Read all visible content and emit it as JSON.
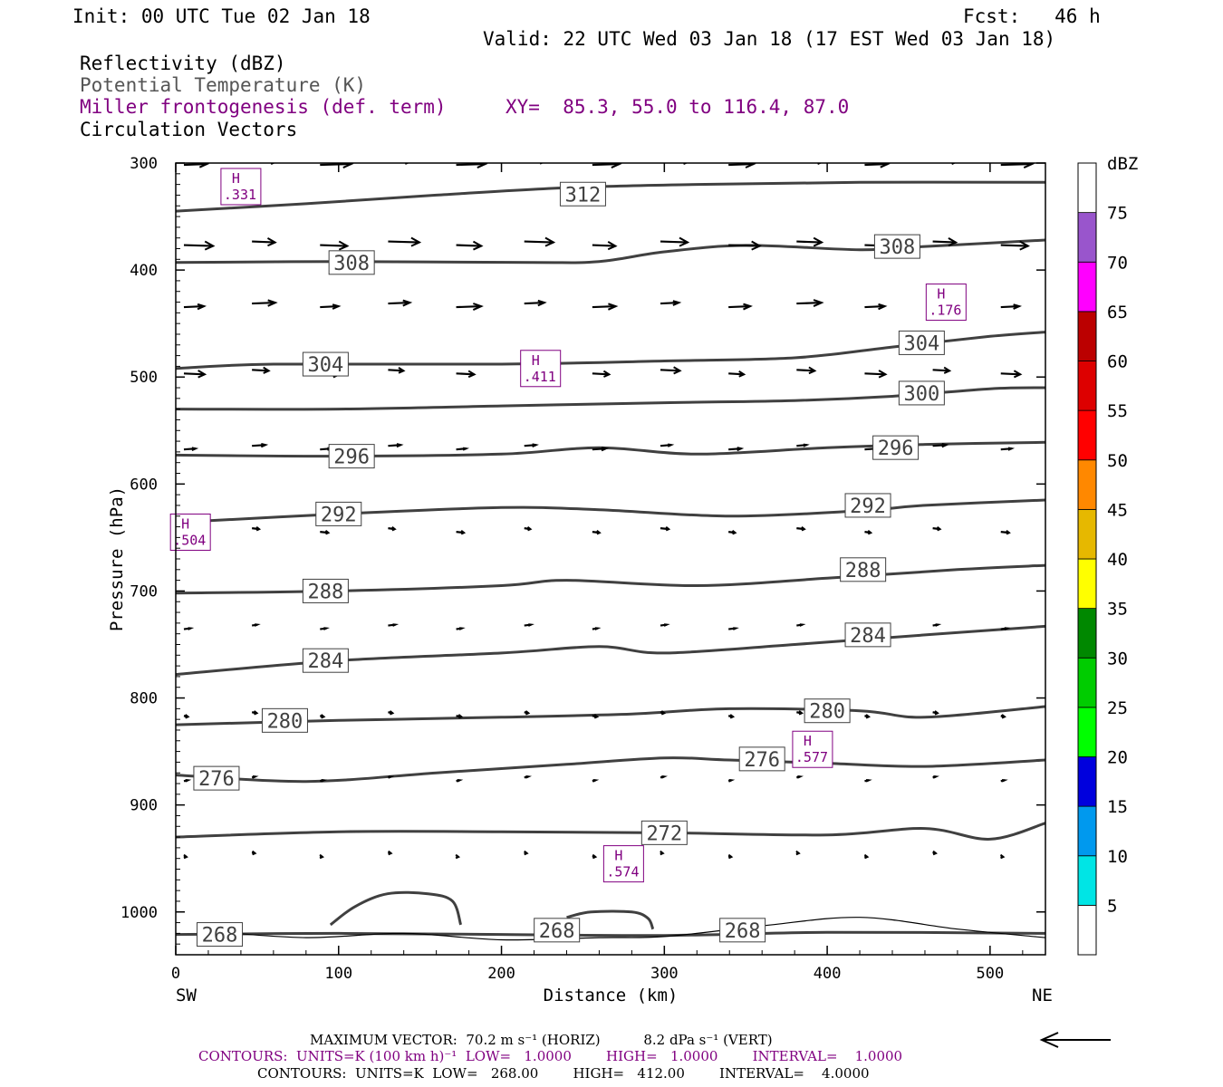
{
  "header": {
    "init": "Init: 00 UTC Tue 02 Jan 18",
    "fcst": "Fcst:   46 h",
    "valid": "Valid: 22 UTC Wed 03 Jan 18 (17 EST Wed 03 Jan 18)",
    "fields": [
      "Reflectivity (dBZ)",
      "Potential Temperature (K)",
      "Miller frontogenesis (def. term)",
      "Circulation Vectors"
    ],
    "xy": "XY=  85.3, 55.0 to 116.4, 87.0"
  },
  "footer": {
    "max_vector": "MAXIMUM VECTOR:  70.2 m s⁻¹ (HORIZ)          8.2 dPa s⁻¹ (VERT)",
    "contours_purple": "CONTOURS:  UNITS=K (100 km h)⁻¹  LOW=   1.0000        HIGH=   1.0000        INTERVAL=    1.0000",
    "contours_black": "CONTOURS:  UNITS=K  LOW=   268.00        HIGH=   412.00        INTERVAL=    4.0000"
  },
  "chart_data": {
    "type": "cross-section",
    "xlabel": "Distance (km)",
    "ylabel": "Pressure (hPa)",
    "xlim": [
      0,
      534
    ],
    "ylim": [
      1040,
      300
    ],
    "x_ticks": [
      0,
      100,
      200,
      300,
      400,
      500
    ],
    "y_ticks": [
      300,
      400,
      500,
      600,
      700,
      800,
      900,
      1000
    ],
    "x_end_labels": [
      "SW",
      "NE"
    ],
    "colorbar": {
      "label": "dBZ",
      "levels": [
        5,
        10,
        15,
        20,
        25,
        30,
        35,
        40,
        45,
        50,
        55,
        60,
        65,
        70,
        75
      ],
      "colors": [
        "#ffffff",
        "#00e5e5",
        "#0099ee",
        "#0000dd",
        "#00ff00",
        "#00cc00",
        "#008800",
        "#ffff00",
        "#e6b800",
        "#ff8800",
        "#ff0000",
        "#dd0000",
        "#bb0000",
        "#ff00ff",
        "#9955cc",
        "#ffffff"
      ]
    },
    "theta_contours": [
      {
        "value": 312,
        "points": [
          [
            0,
            345
          ],
          [
            80,
            338
          ],
          [
            160,
            330
          ],
          [
            240,
            323
          ],
          [
            320,
            320
          ],
          [
            420,
            318
          ],
          [
            534,
            318
          ]
        ],
        "labels": [
          [
            250,
            329
          ]
        ]
      },
      {
        "value": 308,
        "points": [
          [
            0,
            393
          ],
          [
            100,
            392
          ],
          [
            220,
            393
          ],
          [
            260,
            392
          ],
          [
            300,
            383
          ],
          [
            350,
            377
          ],
          [
            420,
            381
          ],
          [
            460,
            378
          ],
          [
            534,
            372
          ]
        ],
        "labels": [
          [
            108,
            393
          ],
          [
            443,
            378
          ]
        ]
      },
      {
        "value": 304,
        "points": [
          [
            0,
            492
          ],
          [
            60,
            488
          ],
          [
            200,
            488
          ],
          [
            300,
            485
          ],
          [
            380,
            482
          ],
          [
            440,
            472
          ],
          [
            500,
            462
          ],
          [
            534,
            458
          ]
        ],
        "labels": [
          [
            92,
            488
          ],
          [
            458,
            468
          ]
        ]
      },
      {
        "value": 300,
        "points": [
          [
            0,
            530
          ],
          [
            100,
            530
          ],
          [
            200,
            527
          ],
          [
            300,
            524
          ],
          [
            380,
            522
          ],
          [
            440,
            518
          ],
          [
            500,
            511
          ],
          [
            534,
            510
          ]
        ],
        "labels": [
          [
            458,
            515
          ]
        ]
      },
      {
        "value": 296,
        "points": [
          [
            0,
            573
          ],
          [
            100,
            574
          ],
          [
            200,
            572
          ],
          [
            260,
            566
          ],
          [
            320,
            572
          ],
          [
            400,
            566
          ],
          [
            460,
            563
          ],
          [
            534,
            561
          ]
        ],
        "labels": [
          [
            108,
            574
          ],
          [
            442,
            566
          ]
        ]
      },
      {
        "value": 292,
        "points": [
          [
            0,
            636
          ],
          [
            100,
            628
          ],
          [
            200,
            622
          ],
          [
            260,
            624
          ],
          [
            340,
            630
          ],
          [
            420,
            625
          ],
          [
            460,
            620
          ],
          [
            534,
            615
          ]
        ],
        "labels": [
          [
            100,
            628
          ],
          [
            425,
            620
          ]
        ]
      },
      {
        "value": 288,
        "points": [
          [
            0,
            702
          ],
          [
            100,
            700
          ],
          [
            200,
            695
          ],
          [
            240,
            690
          ],
          [
            320,
            695
          ],
          [
            400,
            688
          ],
          [
            480,
            680
          ],
          [
            534,
            676
          ]
        ],
        "labels": [
          [
            92,
            700
          ],
          [
            422,
            680
          ]
        ]
      },
      {
        "value": 284,
        "points": [
          [
            0,
            778
          ],
          [
            100,
            765
          ],
          [
            200,
            758
          ],
          [
            260,
            752
          ],
          [
            300,
            758
          ],
          [
            380,
            750
          ],
          [
            460,
            741
          ],
          [
            534,
            733
          ]
        ],
        "labels": [
          [
            92,
            765
          ],
          [
            425,
            741
          ]
        ]
      },
      {
        "value": 280,
        "points": [
          [
            0,
            825
          ],
          [
            100,
            821
          ],
          [
            200,
            818
          ],
          [
            280,
            815
          ],
          [
            340,
            810
          ],
          [
            420,
            812
          ],
          [
            460,
            818
          ],
          [
            534,
            808
          ]
        ],
        "labels": [
          [
            67,
            821
          ],
          [
            400,
            812
          ]
        ]
      },
      {
        "value": 276,
        "points": [
          [
            0,
            872
          ],
          [
            80,
            878
          ],
          [
            160,
            870
          ],
          [
            240,
            862
          ],
          [
            300,
            856
          ],
          [
            340,
            858
          ],
          [
            400,
            861
          ],
          [
            460,
            864
          ],
          [
            534,
            858
          ]
        ],
        "labels": [
          [
            25,
            875
          ],
          [
            360,
            857
          ]
        ]
      },
      {
        "value": 272,
        "points": [
          [
            0,
            930
          ],
          [
            100,
            925
          ],
          [
            200,
            925
          ],
          [
            300,
            926
          ],
          [
            400,
            928
          ],
          [
            460,
            922
          ],
          [
            500,
            932
          ],
          [
            534,
            917
          ]
        ],
        "labels": [
          [
            300,
            926
          ]
        ]
      },
      {
        "value": 268,
        "points": [
          [
            0,
            1021
          ],
          [
            100,
            1020
          ],
          [
            200,
            1021
          ],
          [
            300,
            1022
          ],
          [
            400,
            1019
          ],
          [
            534,
            1020
          ]
        ],
        "labels": [
          [
            27,
            1021
          ],
          [
            234,
            1017
          ],
          [
            348,
            1017
          ]
        ]
      }
    ],
    "frontogenesis_highs": [
      {
        "label": "H",
        "value": ".331",
        "x": 40,
        "p": 322
      },
      {
        "label": "H",
        "value": ".176",
        "x": 473,
        "p": 430
      },
      {
        "label": "H",
        "value": ".411",
        "x": 224,
        "p": 492
      },
      {
        "label": "H",
        "value": ".504",
        "x": 9,
        "p": 645
      },
      {
        "label": "H",
        "value": ".577",
        "x": 391,
        "p": 848
      },
      {
        "label": "H",
        "value": ".574",
        "x": 275,
        "p": 955
      }
    ],
    "vector_levels": [
      {
        "p": 300,
        "length": 30
      },
      {
        "p": 375,
        "length": 30
      },
      {
        "p": 433,
        "length": 24
      },
      {
        "p": 495,
        "length": 20
      },
      {
        "p": 566,
        "length": 13
      },
      {
        "p": 643,
        "length": 8
      },
      {
        "p": 734,
        "length": 7
      },
      {
        "p": 815,
        "length": 5
      },
      {
        "p": 876,
        "length": 4
      },
      {
        "p": 946,
        "length": 3
      }
    ]
  }
}
